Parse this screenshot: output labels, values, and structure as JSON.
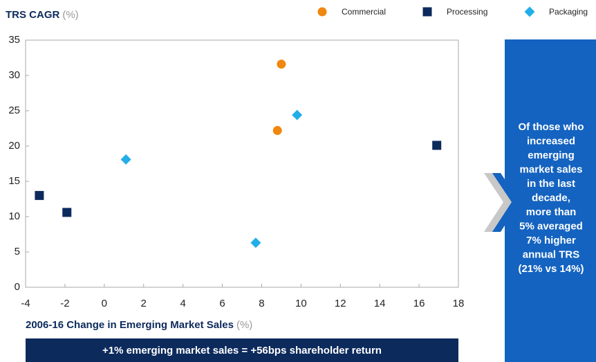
{
  "chart_data": {
    "type": "scatter",
    "title": "TRS CAGR",
    "title_unit": "(%)",
    "x_label": "2006-16 Change in Emerging Market Sales",
    "x_label_unit": "(%)",
    "xlim": [
      -4,
      18
    ],
    "xticks": [
      -4,
      -2,
      0,
      2,
      4,
      6,
      8,
      10,
      12,
      14,
      16,
      18
    ],
    "ylim": [
      0,
      35
    ],
    "yticks": [
      0,
      5,
      10,
      15,
      20,
      25,
      30,
      35
    ],
    "grid": false,
    "legend": "top-right",
    "series": [
      {
        "name": "Commercial",
        "color": "#f0870f",
        "marker": "circle",
        "x": [
          9.0,
          8.8
        ],
        "values": [
          31.6,
          22.2
        ]
      },
      {
        "name": "Processing",
        "color": "#0c2a5c",
        "marker": "square",
        "x": [
          -3.3,
          -1.9,
          16.9
        ],
        "values": [
          13.0,
          10.6,
          20.1
        ]
      },
      {
        "name": "Packaging",
        "color": "#22aee8",
        "marker": "diamond",
        "x": [
          1.1,
          7.7,
          9.8
        ],
        "values": [
          18.1,
          6.3,
          24.4
        ]
      }
    ],
    "banner": "+1% emerging market sales = +56bps shareholder return",
    "callout": [
      "Of those who",
      "increased",
      "emerging",
      "market sales",
      "in the last",
      "decade,",
      "more than",
      "5% averaged",
      "7% higher",
      "annual TRS",
      "(21% vs 14%)"
    ]
  }
}
